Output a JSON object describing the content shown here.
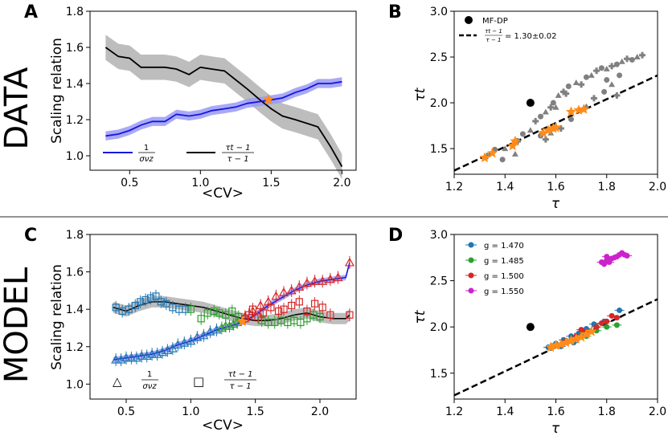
{
  "row_labels": {
    "top": "DATA",
    "bottom": "MODEL"
  },
  "legend_symbols": {
    "triangle": "△",
    "square": "□"
  },
  "colors": {
    "blue": "#1515e0",
    "blue_band": "#9a9af5",
    "gray_band": "#bdbdbd",
    "black": "#000000",
    "orange": "#ff8c1a",
    "gray_pts": "#808080",
    "g1": "#1f77b4",
    "g2": "#2ca02c",
    "g3": "#d62728",
    "g4": "#cc22cc"
  },
  "chart_data": [
    {
      "panel": "A",
      "type": "line",
      "xlabel": "<CV>",
      "ylabel": "Scaling relation",
      "xlim": [
        0.22,
        2.1
      ],
      "ylim": [
        0.92,
        1.8
      ],
      "xticks": [
        "0.5",
        "1.0",
        "1.5",
        "2.0"
      ],
      "yticks": [
        "1.0",
        "1.2",
        "1.4",
        "1.6",
        "1.8"
      ],
      "series": [
        {
          "name": "1/σνz",
          "legend_num": "1",
          "legend_den": "σνz",
          "color": "blue",
          "x": [
            0.33,
            0.42,
            0.5,
            0.58,
            0.66,
            0.75,
            0.83,
            0.92,
            1.0,
            1.08,
            1.17,
            1.25,
            1.33,
            1.42,
            1.5,
            1.58,
            1.67,
            1.75,
            1.83,
            1.92,
            2.0
          ],
          "y": [
            1.11,
            1.12,
            1.14,
            1.17,
            1.19,
            1.19,
            1.23,
            1.22,
            1.23,
            1.25,
            1.26,
            1.27,
            1.29,
            1.3,
            1.31,
            1.32,
            1.35,
            1.37,
            1.4,
            1.4,
            1.41
          ],
          "band": 0.025
        },
        {
          "name": "(τt−1)/(τ−1)",
          "legend_num": "τt − 1",
          "legend_den": "τ − 1",
          "color": "black",
          "x": [
            0.33,
            0.42,
            0.5,
            0.58,
            0.66,
            0.75,
            0.83,
            0.92,
            1.0,
            1.08,
            1.17,
            1.25,
            1.33,
            1.42,
            1.5,
            1.58,
            1.67,
            1.75,
            1.83,
            1.92,
            2.0
          ],
          "y": [
            1.6,
            1.55,
            1.54,
            1.49,
            1.49,
            1.49,
            1.48,
            1.45,
            1.49,
            1.48,
            1.47,
            1.42,
            1.37,
            1.31,
            1.26,
            1.22,
            1.2,
            1.18,
            1.16,
            1.05,
            0.94
          ],
          "band": 0.07
        }
      ],
      "marker": {
        "x": 1.48,
        "y": 1.31,
        "color": "orange"
      }
    },
    {
      "panel": "B",
      "type": "scatter",
      "xlabel": "τ",
      "ylabel": "τt",
      "xlim": [
        1.2,
        2.0
      ],
      "ylim": [
        1.22,
        3.0
      ],
      "xticks": [
        "1.2",
        "1.4",
        "1.6",
        "1.8",
        "2.0"
      ],
      "yticks": [
        "1.5",
        "2.0",
        "2.5",
        "3.0"
      ],
      "mfdp": {
        "label": "MF-DP",
        "x": 1.5,
        "y": 2.0
      },
      "fit": {
        "slope": 1.3,
        "legend_num": "τt − 1",
        "legend_den": "τ − 1",
        "legend_value": "= 1.30±0.02"
      },
      "gray_points": [
        [
          1.33,
          1.42
        ],
        [
          1.36,
          1.49
        ],
        [
          1.4,
          1.5
        ],
        [
          1.45,
          1.58
        ],
        [
          1.47,
          1.66
        ],
        [
          1.5,
          1.7
        ],
        [
          1.52,
          1.8
        ],
        [
          1.54,
          1.85
        ],
        [
          1.56,
          1.9
        ],
        [
          1.58,
          1.95
        ],
        [
          1.59,
          2.0
        ],
        [
          1.61,
          2.08
        ],
        [
          1.63,
          2.12
        ],
        [
          1.65,
          2.18
        ],
        [
          1.68,
          2.22
        ],
        [
          1.7,
          2.2
        ],
        [
          1.72,
          2.28
        ],
        [
          1.74,
          2.3
        ],
        [
          1.76,
          2.35
        ],
        [
          1.78,
          2.38
        ],
        [
          1.8,
          2.37
        ],
        [
          1.82,
          2.4
        ],
        [
          1.84,
          2.42
        ],
        [
          1.86,
          2.45
        ],
        [
          1.88,
          2.48
        ],
        [
          1.9,
          2.47
        ],
        [
          1.92,
          2.5
        ],
        [
          1.94,
          2.52
        ],
        [
          1.54,
          1.64
        ],
        [
          1.58,
          1.67
        ],
        [
          1.62,
          1.72
        ],
        [
          1.66,
          1.82
        ],
        [
          1.72,
          1.96
        ],
        [
          1.75,
          2.05
        ],
        [
          1.79,
          2.12
        ],
        [
          1.82,
          2.2
        ],
        [
          1.84,
          2.08
        ],
        [
          1.8,
          2.25
        ],
        [
          1.6,
          1.95
        ],
        [
          1.64,
          2.1
        ],
        [
          1.39,
          1.38
        ],
        [
          1.44,
          1.44
        ],
        [
          1.56,
          1.6
        ],
        [
          1.85,
          2.3
        ]
      ],
      "orange_points": [
        [
          1.32,
          1.4
        ],
        [
          1.35,
          1.45
        ],
        [
          1.43,
          1.53
        ],
        [
          1.44,
          1.58
        ],
        [
          1.55,
          1.67
        ],
        [
          1.57,
          1.7
        ],
        [
          1.59,
          1.72
        ],
        [
          1.6,
          1.73
        ],
        [
          1.66,
          1.9
        ],
        [
          1.69,
          1.92
        ],
        [
          1.71,
          1.93
        ]
      ]
    },
    {
      "panel": "C",
      "type": "line",
      "xlabel": "<CV>",
      "ylabel": "Scaling relation",
      "xlim": [
        0.22,
        2.28
      ],
      "ylim": [
        0.92,
        1.8
      ],
      "xticks": [
        "0.5",
        "1.0",
        "1.5",
        "2.0"
      ],
      "yticks": [
        "1.0",
        "1.2",
        "1.4",
        "1.6",
        "1.8"
      ],
      "legend": {
        "tri_num": "1",
        "tri_den": "σνz",
        "sq_num": "τt − 1",
        "sq_den": "τ − 1"
      },
      "blue_curve": {
        "x": [
          0.4,
          0.5,
          0.6,
          0.7,
          0.8,
          0.9,
          1.0,
          1.1,
          1.2,
          1.3,
          1.4,
          1.5,
          1.6,
          1.7,
          1.8,
          1.9,
          2.0,
          2.1,
          2.2,
          2.23
        ],
        "y": [
          1.13,
          1.14,
          1.15,
          1.16,
          1.18,
          1.21,
          1.23,
          1.26,
          1.29,
          1.31,
          1.33,
          1.37,
          1.42,
          1.46,
          1.5,
          1.53,
          1.55,
          1.56,
          1.57,
          1.65
        ]
      },
      "black_curve": {
        "x": [
          0.4,
          0.5,
          0.6,
          0.7,
          0.8,
          0.9,
          1.0,
          1.1,
          1.2,
          1.3,
          1.4,
          1.5,
          1.6,
          1.7,
          1.8,
          1.9,
          2.0,
          2.1,
          2.2,
          2.23
        ],
        "y": [
          1.41,
          1.39,
          1.42,
          1.44,
          1.44,
          1.43,
          1.42,
          1.41,
          1.39,
          1.37,
          1.35,
          1.34,
          1.34,
          1.35,
          1.37,
          1.38,
          1.36,
          1.35,
          1.35,
          1.37
        ]
      },
      "triangles": {
        "blue": [
          [
            0.42,
            1.13
          ],
          [
            0.46,
            1.13
          ],
          [
            0.5,
            1.14
          ],
          [
            0.54,
            1.14
          ],
          [
            0.58,
            1.14
          ],
          [
            0.62,
            1.15
          ],
          [
            0.66,
            1.15
          ],
          [
            0.7,
            1.16
          ],
          [
            0.74,
            1.16
          ],
          [
            0.78,
            1.17
          ],
          [
            0.82,
            1.18
          ],
          [
            0.86,
            1.19
          ],
          [
            0.9,
            1.21
          ],
          [
            0.95,
            1.22
          ],
          [
            1.0,
            1.23
          ],
          [
            1.05,
            1.25
          ],
          [
            1.1,
            1.26
          ],
          [
            1.15,
            1.28
          ],
          [
            1.2,
            1.29
          ]
        ],
        "green": [
          [
            1.24,
            1.3
          ],
          [
            1.27,
            1.31
          ],
          [
            1.3,
            1.31
          ],
          [
            1.33,
            1.32
          ],
          [
            1.36,
            1.33
          ]
        ],
        "red": [
          [
            1.42,
            1.36
          ],
          [
            1.48,
            1.39
          ],
          [
            1.54,
            1.42
          ],
          [
            1.6,
            1.44
          ],
          [
            1.66,
            1.47
          ],
          [
            1.72,
            1.49
          ],
          [
            1.78,
            1.5
          ],
          [
            1.84,
            1.52
          ],
          [
            1.9,
            1.54
          ],
          [
            1.96,
            1.55
          ],
          [
            2.02,
            1.55
          ],
          [
            2.08,
            1.56
          ],
          [
            2.14,
            1.57
          ],
          [
            2.23,
            1.65
          ]
        ]
      },
      "squares": {
        "blue": [
          [
            0.42,
            1.41
          ],
          [
            0.47,
            1.39
          ],
          [
            0.52,
            1.4
          ],
          [
            0.57,
            1.42
          ],
          [
            0.61,
            1.44
          ],
          [
            0.65,
            1.45
          ],
          [
            0.69,
            1.46
          ],
          [
            0.73,
            1.47
          ],
          [
            0.77,
            1.44
          ],
          [
            0.81,
            1.43
          ],
          [
            0.86,
            1.41
          ],
          [
            0.91,
            1.4
          ],
          [
            0.96,
            1.4
          ]
        ],
        "green": [
          [
            1.0,
            1.4
          ],
          [
            1.08,
            1.35
          ],
          [
            1.13,
            1.38
          ],
          [
            1.18,
            1.39
          ],
          [
            1.22,
            1.38
          ],
          [
            1.27,
            1.37
          ],
          [
            1.32,
            1.39
          ],
          [
            1.37,
            1.36
          ],
          [
            1.55,
            1.34
          ],
          [
            1.6,
            1.33
          ],
          [
            1.65,
            1.33
          ],
          [
            1.7,
            1.34
          ],
          [
            1.75,
            1.33
          ],
          [
            1.8,
            1.34
          ],
          [
            1.85,
            1.33
          ],
          [
            1.9,
            1.35
          ],
          [
            1.95,
            1.37
          ],
          [
            2.0,
            1.36
          ]
        ],
        "red": [
          [
            1.42,
            1.35
          ],
          [
            1.45,
            1.37
          ],
          [
            1.48,
            1.4
          ],
          [
            1.52,
            1.36
          ],
          [
            1.56,
            1.38
          ],
          [
            1.62,
            1.41
          ],
          [
            1.68,
            1.39
          ],
          [
            1.72,
            1.4
          ],
          [
            1.78,
            1.42
          ],
          [
            1.84,
            1.44
          ],
          [
            1.9,
            1.39
          ],
          [
            1.96,
            1.43
          ],
          [
            2.02,
            1.41
          ],
          [
            2.08,
            1.37
          ],
          [
            2.23,
            1.37
          ]
        ]
      }
    },
    {
      "panel": "D",
      "type": "scatter",
      "xlabel": "τ",
      "ylabel": "τt",
      "xlim": [
        1.2,
        2.0
      ],
      "ylim": [
        1.22,
        3.0
      ],
      "xticks": [
        "1.2",
        "1.4",
        "1.6",
        "1.8",
        "2.0"
      ],
      "yticks": [
        "1.5",
        "2.0",
        "2.5",
        "3.0"
      ],
      "mfdp": {
        "x": 1.5,
        "y": 2.0
      },
      "fit": {
        "slope": 1.3
      },
      "groups": [
        {
          "label": "g = 1.470",
          "color": "g1",
          "points": [
            [
              1.57,
              1.78
            ],
            [
              1.6,
              1.82
            ],
            [
              1.63,
              1.86
            ],
            [
              1.66,
              1.9
            ],
            [
              1.69,
              1.93
            ],
            [
              1.72,
              1.98
            ],
            [
              1.75,
              2.03
            ],
            [
              1.79,
              2.06
            ],
            [
              1.85,
              2.18
            ],
            [
              1.62,
              1.79
            ],
            [
              1.67,
              1.83
            ],
            [
              1.7,
              1.92
            ],
            [
              1.73,
              1.95
            ]
          ]
        },
        {
          "label": "g = 1.485",
          "color": "g2",
          "points": [
            [
              1.6,
              1.8
            ],
            [
              1.64,
              1.84
            ],
            [
              1.68,
              1.88
            ],
            [
              1.72,
              1.9
            ],
            [
              1.76,
              1.96
            ],
            [
              1.8,
              2.0
            ],
            [
              1.84,
              2.02
            ],
            [
              1.66,
              1.86
            ],
            [
              1.71,
              1.94
            ]
          ]
        },
        {
          "label": "g = 1.500",
          "color": "g3",
          "points": [
            [
              1.64,
              1.85
            ],
            [
              1.68,
              1.9
            ],
            [
              1.72,
              1.95
            ],
            [
              1.76,
              2.0
            ],
            [
              1.8,
              2.06
            ],
            [
              1.82,
              2.12
            ],
            [
              1.84,
              2.1
            ],
            [
              1.78,
              2.04
            ],
            [
              1.7,
              1.97
            ]
          ]
        },
        {
          "label": "g = 1.550",
          "color": "g4",
          "points": [
            [
              1.78,
              2.7
            ],
            [
              1.8,
              2.72
            ],
            [
              1.82,
              2.74
            ],
            [
              1.84,
              2.76
            ],
            [
              1.86,
              2.8
            ],
            [
              1.85,
              2.78
            ],
            [
              1.79,
              2.68
            ],
            [
              1.81,
              2.7
            ],
            [
              1.83,
              2.75
            ],
            [
              1.87,
              2.78
            ],
            [
              1.88,
              2.77
            ],
            [
              1.8,
              2.76
            ]
          ]
        }
      ],
      "orange_points": [
        [
          1.58,
          1.78
        ],
        [
          1.6,
          1.8
        ],
        [
          1.62,
          1.81
        ],
        [
          1.64,
          1.83
        ],
        [
          1.66,
          1.85
        ],
        [
          1.68,
          1.87
        ],
        [
          1.7,
          1.89
        ],
        [
          1.72,
          1.92
        ],
        [
          1.74,
          1.95
        ]
      ]
    }
  ]
}
